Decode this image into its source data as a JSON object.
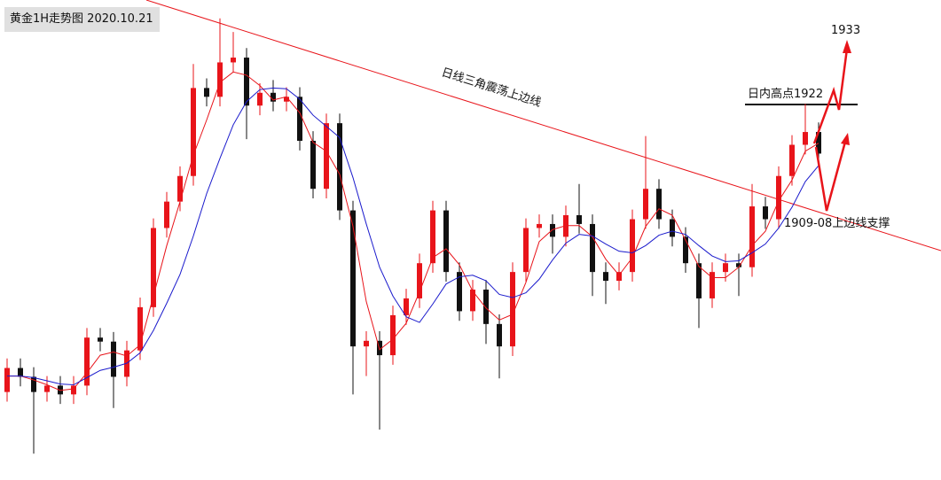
{
  "chart_data": {
    "type": "candlestick",
    "title": "黄金1H走势图 2020.10.21",
    "annotations": [
      "日线三角震荡上边线",
      "日内高点1922",
      "1933",
      "1909-08上边线支撑"
    ],
    "up_color": "#e8141a",
    "down_color": "#111111",
    "ylim": [
      1875,
      1935
    ],
    "open": [
      1886.0,
      1889.0,
      1887.9,
      1886.0,
      1886.8,
      1885.7,
      1886.8,
      1892.8,
      1892.3,
      1887.9,
      1891.2,
      1896.6,
      1906.5,
      1909.8,
      1913.0,
      1924.0,
      1922.9,
      1927.2,
      1927.8,
      1921.8,
      1923.4,
      1922.3,
      1922.9,
      1917.4,
      1911.4,
      1919.6,
      1908.7,
      1891.7,
      1892.4,
      1890.6,
      1895.6,
      1897.7,
      1902.1,
      1908.7,
      1901.0,
      1896.1,
      1898.8,
      1894.5,
      1891.7,
      1901.0,
      1906.5,
      1907.0,
      1905.4,
      1908.1,
      1907.0,
      1901.0,
      1899.9,
      1901.0,
      1907.6,
      1911.4,
      1907.6,
      1905.4,
      1902.1,
      1897.7,
      1901.0,
      1902.1,
      1901.6,
      1909.2,
      1907.6,
      1913.0,
      1916.9,
      1918.5
    ],
    "high": [
      1890.2,
      1890.2,
      1889.1,
      1888.0,
      1888.0,
      1888.0,
      1894.0,
      1894.0,
      1893.5,
      1892.4,
      1897.8,
      1907.7,
      1911.0,
      1914.2,
      1927.0,
      1925.2,
      1932.7,
      1931.0,
      1929.0,
      1924.6,
      1925.0,
      1924.1,
      1924.1,
      1918.6,
      1920.8,
      1920.8,
      1909.9,
      1893.6,
      1893.6,
      1896.8,
      1898.9,
      1903.3,
      1909.9,
      1909.9,
      1902.2,
      1900.0,
      1900.0,
      1895.7,
      1902.2,
      1907.7,
      1908.2,
      1908.2,
      1909.3,
      1912.0,
      1908.2,
      1902.2,
      1902.2,
      1908.8,
      1918.0,
      1912.6,
      1908.8,
      1906.6,
      1903.3,
      1902.2,
      1903.3,
      1903.3,
      1912.0,
      1910.4,
      1914.2,
      1918.1,
      1922.0,
      1919.7
    ],
    "low": [
      1884.8,
      1886.7,
      1878.3,
      1884.8,
      1884.5,
      1884.5,
      1885.6,
      1891.1,
      1884.0,
      1886.7,
      1890.0,
      1895.4,
      1905.3,
      1908.6,
      1911.8,
      1921.7,
      1921.7,
      1926.0,
      1917.6,
      1920.6,
      1921.1,
      1921.1,
      1916.2,
      1910.2,
      1910.2,
      1907.5,
      1885.7,
      1888.0,
      1881.3,
      1889.4,
      1894.4,
      1896.5,
      1900.9,
      1899.8,
      1894.9,
      1894.9,
      1892.0,
      1887.7,
      1890.5,
      1899.8,
      1905.3,
      1903.3,
      1904.2,
      1905.8,
      1898.0,
      1897.0,
      1898.7,
      1899.8,
      1906.4,
      1906.4,
      1904.2,
      1900.9,
      1894.0,
      1896.5,
      1899.8,
      1898.0,
      1900.4,
      1906.4,
      1906.4,
      1911.8,
      1915.7,
      1914.6
    ],
    "close": [
      1889.0,
      1887.9,
      1886.0,
      1886.8,
      1885.7,
      1886.8,
      1892.8,
      1892.3,
      1887.9,
      1891.2,
      1896.6,
      1906.5,
      1909.8,
      1913.0,
      1924.0,
      1922.9,
      1927.2,
      1927.8,
      1921.8,
      1923.4,
      1922.3,
      1922.9,
      1917.4,
      1911.4,
      1919.6,
      1908.7,
      1891.7,
      1892.4,
      1890.6,
      1895.6,
      1897.7,
      1902.1,
      1908.7,
      1901.0,
      1896.1,
      1898.8,
      1894.5,
      1891.7,
      1901.0,
      1906.5,
      1907.0,
      1905.4,
      1908.1,
      1907.0,
      1901.0,
      1899.9,
      1901.0,
      1907.6,
      1911.4,
      1907.6,
      1905.4,
      1902.1,
      1897.7,
      1901.0,
      1902.1,
      1901.6,
      1909.2,
      1907.6,
      1913.0,
      1916.9,
      1918.5,
      1915.8
    ],
    "series": [
      {
        "color": "#e8141a",
        "values": [
          1888,
          1888,
          1887.5,
          1886.9,
          1886.2,
          1886.4,
          1888.4,
          1890.6,
          1891,
          1890.5,
          1891.9,
          1898,
          1904.3,
          1909.8,
          1915.6,
          1920,
          1924.7,
          1926,
          1925.6,
          1924.3,
          1922.5,
          1922.9,
          1920.9,
          1917.2,
          1916.1,
          1913.2,
          1906.7,
          1897.3,
          1891.3,
          1892.6,
          1894.6,
          1898.5,
          1902.8,
          1903.9,
          1901.9,
          1898.6,
          1896.5,
          1895,
          1895.7,
          1899.7,
          1904.8,
          1906.3,
          1906.8,
          1906.8,
          1905.4,
          1902.6,
          1900.6,
          1902.8,
          1906.7,
          1908.9,
          1908.1,
          1905,
          1901.7,
          1900.3,
          1900.3,
          1901.6,
          1904.3,
          1906.1,
          1909.9,
          1912.5,
          1916.1,
          1917.1
        ]
      },
      {
        "color": "#1a1acc",
        "values": [
          1888,
          1888,
          1887.8,
          1887.4,
          1887,
          1886.9,
          1887.8,
          1888.7,
          1889.1,
          1889.6,
          1890.9,
          1893.7,
          1897.1,
          1900.7,
          1905.5,
          1910.8,
          1915.2,
          1919.4,
          1922.3,
          1923.8,
          1924,
          1923.9,
          1922.6,
          1920.6,
          1919.2,
          1917.8,
          1912.8,
          1907,
          1901.6,
          1898,
          1895.4,
          1894.7,
          1897,
          1899.5,
          1900.4,
          1900.6,
          1899.9,
          1898.2,
          1897.8,
          1898.4,
          1900.1,
          1902.5,
          1904.6,
          1905.7,
          1905.5,
          1904.5,
          1903.6,
          1903.4,
          1904.3,
          1905.6,
          1906.1,
          1905.7,
          1904.3,
          1903,
          1902.3,
          1902.4,
          1903.4,
          1904.5,
          1906.5,
          1909.1,
          1912.3,
          1914.3
        ]
      }
    ]
  }
}
